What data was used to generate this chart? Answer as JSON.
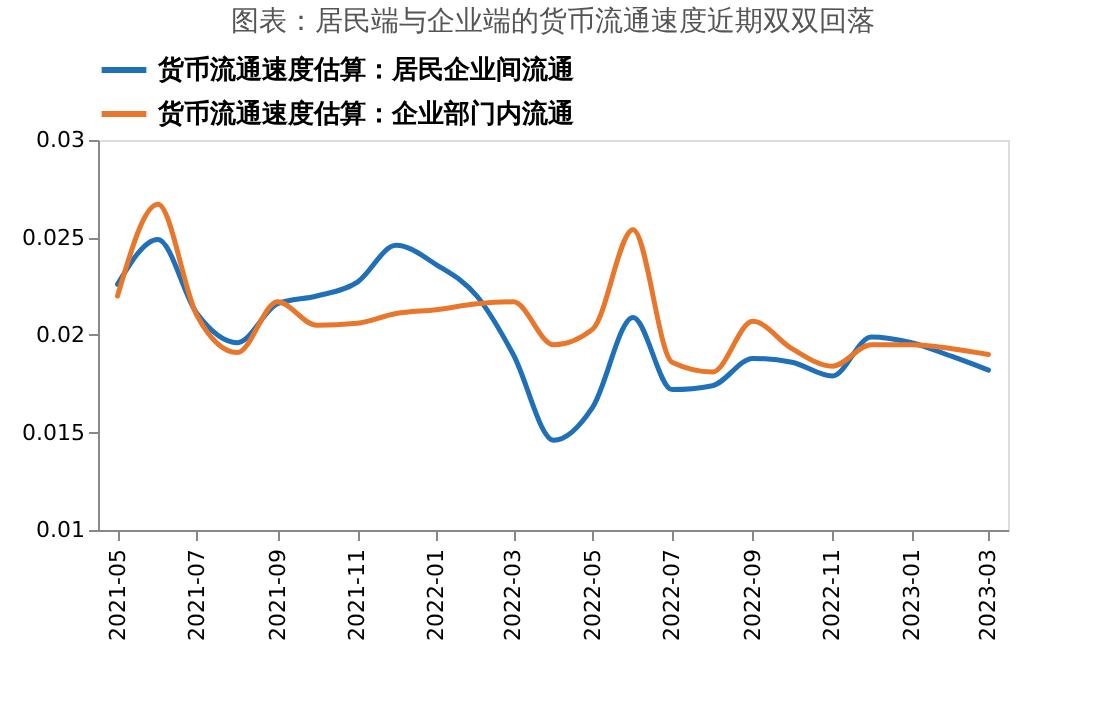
{
  "chart_data": {
    "type": "line",
    "title": "图表：居民端与企业端的货币流通速度近期双双回落",
    "x": [
      "2021-05",
      "2021-06",
      "2021-07",
      "2021-08",
      "2021-09",
      "2021-10",
      "2021-11",
      "2021-12",
      "2022-01",
      "2022-02",
      "2022-03",
      "2022-04",
      "2022-05",
      "2022-06",
      "2022-07",
      "2022-08",
      "2022-09",
      "2022-10",
      "2022-11",
      "2022-12",
      "2023-01",
      "2023-02",
      "2023-03"
    ],
    "series": [
      {
        "name": "货币流通速度估算：居民企业间流通",
        "color": "#1f70b8",
        "values": [
          0.0226,
          0.0249,
          0.0211,
          0.0196,
          0.0216,
          0.022,
          0.0227,
          0.0246,
          0.0236,
          0.022,
          0.019,
          0.0146,
          0.0163,
          0.0209,
          0.0172,
          0.0174,
          0.0188,
          0.0186,
          0.0179,
          0.0199,
          0.0196,
          0.0189,
          0.0182
        ]
      },
      {
        "name": "货币流通速度估算：企业部门内流通",
        "color": "#e8762b",
        "values": [
          0.022,
          0.0267,
          0.021,
          0.0191,
          0.0217,
          0.0205,
          0.0206,
          0.0211,
          0.0213,
          0.0216,
          0.0217,
          0.0195,
          0.0203,
          0.0254,
          0.0186,
          0.0181,
          0.0207,
          0.0193,
          0.0184,
          0.0195,
          0.0195,
          0.0193,
          0.019
        ]
      }
    ],
    "xlim": [
      "2021-04-16",
      "2023-03-16"
    ],
    "xticks": [
      "2021-05",
      "2021-07",
      "2021-09",
      "2021-11",
      "2022-01",
      "2022-03",
      "2022-05",
      "2022-07",
      "2022-09",
      "2022-11",
      "2023-01",
      "2023-03"
    ],
    "ylim": [
      0.01,
      0.03
    ],
    "yticks": [
      0.01,
      0.015,
      0.02,
      0.025,
      0.03
    ],
    "grid": false,
    "legend": "top",
    "marker": "none",
    "line_style": "solid"
  }
}
